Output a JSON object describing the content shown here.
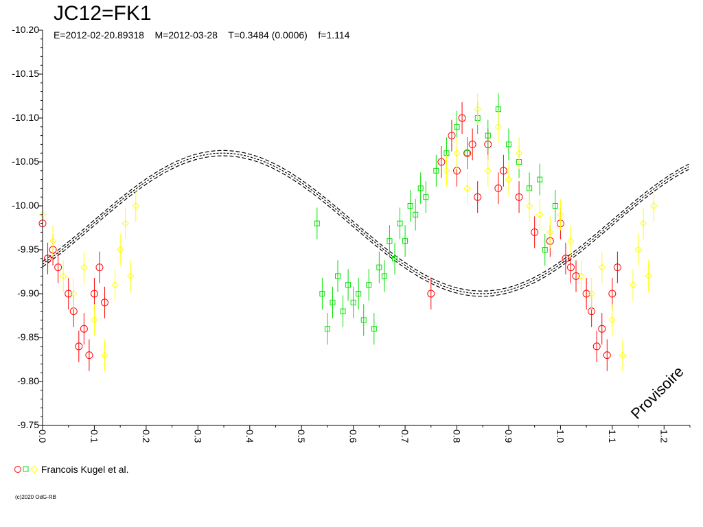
{
  "chart_data": {
    "type": "scatter",
    "title": "JC12=FK1",
    "subtitle": "E=2012-02-20.89318    M=2012-03-28    T=0.3484 (0.0006)    f=1.114",
    "xlim": [
      0,
      1.25
    ],
    "ylim": [
      -10.2,
      -9.75
    ],
    "y_inverted": true,
    "x_ticks": [
      "0.0",
      "0.1",
      "0.2",
      "0.3",
      "0.4",
      "0.5",
      "0.6",
      "0.7",
      "0.8",
      "0.9",
      "1.0",
      "1.1",
      "1.2"
    ],
    "y_ticks": [
      "-10.20",
      "-10.15",
      "-10.10",
      "-10.05",
      "-10.00",
      "-9.95",
      "-9.90",
      "-9.85",
      "-9.80",
      "-9.75"
    ],
    "model": {
      "mean": -9.98,
      "amplitude": 0.08,
      "period": 1.0,
      "maximum_phase": 0.3484,
      "band": 0.003
    },
    "series": [
      {
        "marker": "circle",
        "color": "#ff0000",
        "points": [
          [
            0.0,
            -9.98
          ],
          [
            0.01,
            -9.94
          ],
          [
            0.02,
            -9.95
          ],
          [
            0.03,
            -9.93
          ],
          [
            0.05,
            -9.9
          ],
          [
            0.06,
            -9.88
          ],
          [
            0.07,
            -9.84
          ],
          [
            0.08,
            -9.86
          ],
          [
            0.09,
            -9.83
          ],
          [
            0.1,
            -9.9
          ],
          [
            0.11,
            -9.93
          ],
          [
            0.12,
            -9.89
          ],
          [
            0.75,
            -9.9
          ],
          [
            0.77,
            -10.05
          ],
          [
            0.79,
            -10.08
          ],
          [
            0.8,
            -10.04
          ],
          [
            0.81,
            -10.1
          ],
          [
            0.82,
            -10.06
          ],
          [
            0.83,
            -10.07
          ],
          [
            0.84,
            -10.01
          ],
          [
            0.86,
            -10.07
          ],
          [
            0.88,
            -10.02
          ],
          [
            0.89,
            -10.04
          ],
          [
            0.92,
            -10.01
          ],
          [
            0.95,
            -9.97
          ],
          [
            0.98,
            -9.96
          ],
          [
            1.0,
            -9.98
          ],
          [
            1.01,
            -9.94
          ],
          [
            1.02,
            -9.93
          ],
          [
            1.03,
            -9.92
          ],
          [
            1.05,
            -9.9
          ],
          [
            1.06,
            -9.88
          ],
          [
            1.07,
            -9.84
          ],
          [
            1.08,
            -9.86
          ],
          [
            1.09,
            -9.83
          ],
          [
            1.1,
            -9.9
          ],
          [
            1.11,
            -9.93
          ]
        ]
      },
      {
        "marker": "square",
        "color": "#00e000",
        "points": [
          [
            0.53,
            -9.98
          ],
          [
            0.54,
            -9.9
          ],
          [
            0.55,
            -9.86
          ],
          [
            0.56,
            -9.89
          ],
          [
            0.57,
            -9.92
          ],
          [
            0.58,
            -9.88
          ],
          [
            0.59,
            -9.91
          ],
          [
            0.6,
            -9.89
          ],
          [
            0.61,
            -9.9
          ],
          [
            0.62,
            -9.87
          ],
          [
            0.63,
            -9.91
          ],
          [
            0.64,
            -9.86
          ],
          [
            0.65,
            -9.93
          ],
          [
            0.66,
            -9.92
          ],
          [
            0.67,
            -9.96
          ],
          [
            0.68,
            -9.94
          ],
          [
            0.69,
            -9.98
          ],
          [
            0.7,
            -9.96
          ],
          [
            0.71,
            -10.0
          ],
          [
            0.72,
            -9.99
          ],
          [
            0.73,
            -10.02
          ],
          [
            0.74,
            -10.01
          ],
          [
            0.76,
            -10.04
          ],
          [
            0.78,
            -10.06
          ],
          [
            0.8,
            -10.09
          ],
          [
            0.82,
            -10.06
          ],
          [
            0.84,
            -10.1
          ],
          [
            0.86,
            -10.08
          ],
          [
            0.88,
            -10.11
          ],
          [
            0.9,
            -10.07
          ],
          [
            0.92,
            -10.05
          ],
          [
            0.94,
            -10.02
          ],
          [
            0.96,
            -10.03
          ],
          [
            0.97,
            -9.95
          ],
          [
            0.99,
            -10.0
          ]
        ]
      },
      {
        "marker": "diamond",
        "color": "#ffff00",
        "points": [
          [
            0.0,
            -9.99
          ],
          [
            0.02,
            -9.96
          ],
          [
            0.04,
            -9.92
          ],
          [
            0.06,
            -9.9
          ],
          [
            0.08,
            -9.93
          ],
          [
            0.1,
            -9.87
          ],
          [
            0.12,
            -9.83
          ],
          [
            0.14,
            -9.91
          ],
          [
            0.15,
            -9.95
          ],
          [
            0.16,
            -9.98
          ],
          [
            0.17,
            -9.92
          ],
          [
            0.18,
            -10.0
          ],
          [
            0.78,
            -10.04
          ],
          [
            0.8,
            -10.06
          ],
          [
            0.82,
            -10.02
          ],
          [
            0.84,
            -10.11
          ],
          [
            0.86,
            -10.04
          ],
          [
            0.88,
            -10.09
          ],
          [
            0.9,
            -10.03
          ],
          [
            0.92,
            -10.06
          ],
          [
            0.94,
            -10.0
          ],
          [
            0.96,
            -9.99
          ],
          [
            0.98,
            -9.97
          ],
          [
            1.0,
            -9.99
          ],
          [
            1.02,
            -9.96
          ],
          [
            1.04,
            -9.92
          ],
          [
            1.06,
            -9.9
          ],
          [
            1.08,
            -9.93
          ],
          [
            1.1,
            -9.87
          ],
          [
            1.12,
            -9.83
          ],
          [
            1.14,
            -9.91
          ],
          [
            1.15,
            -9.95
          ],
          [
            1.16,
            -9.98
          ],
          [
            1.17,
            -9.92
          ],
          [
            1.18,
            -10.0
          ]
        ]
      }
    ],
    "annotation": "Provisoire"
  },
  "legend": {
    "label": "Francois Kugel et al."
  },
  "copyright": "(c)2020 OdG-RB"
}
